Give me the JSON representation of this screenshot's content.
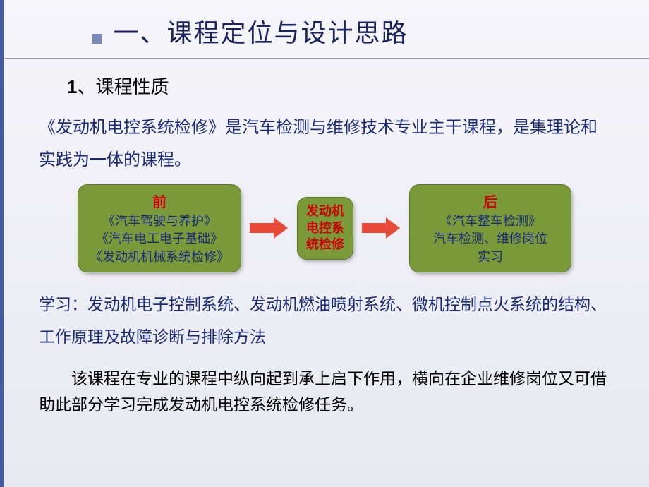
{
  "title": "一、课程定位与设计思路",
  "sub_heading_num": "1",
  "sub_heading_text": "、课程性质",
  "intro": "《发动机电控系统检修》是汽车检测与维修技术专业主干课程，是集理论和实践为一体的课程。",
  "diagram": {
    "type": "flowchart",
    "box1": {
      "label": "前",
      "line1": "《汽车驾驶与养护》",
      "line2": "《汽车电工电子基础》",
      "line3": "《发动机机械系统检修》",
      "bg_color": "#7a9a3a",
      "label_color": "#cc0000",
      "text_color": "#1a2b7c"
    },
    "box2": {
      "line1": "发动机",
      "line2": "电控系",
      "line3": "统检修",
      "bg_color": "#7a9a3a",
      "text_color": "#cc0000"
    },
    "box3": {
      "label": "后",
      "line1": "《汽车整车检测》",
      "line2": "汽车检测、维修岗位",
      "line3": "实习",
      "bg_color": "#7a9a3a",
      "label_color": "#cc0000",
      "text_color": "#1a2b7c"
    },
    "arrow_color": "#e84a3a"
  },
  "learn": "学习：发动机电子控制系统、发动机燃油喷射系统、微机控制点火系统的结构、工作原理及故障诊断与排除方法",
  "summary": "该课程在专业的课程中纵向起到承上启下作用，横向在企业维修岗位又可借助此部分学习完成发动机电控系统检修任务。",
  "colors": {
    "title_color": "#1a2260",
    "bullet_color": "#7a8ab8",
    "body_blue": "#1a2b7c",
    "body_black": "#000000",
    "left_border": "#4a5a9e",
    "bg_top": "#f5f5fa",
    "bg_bottom": "#e8e8f0"
  },
  "fonts": {
    "title_size": 36,
    "sub_heading_size": 26,
    "body_size": 24,
    "box_label_size": 20,
    "box_text_size": 18
  }
}
